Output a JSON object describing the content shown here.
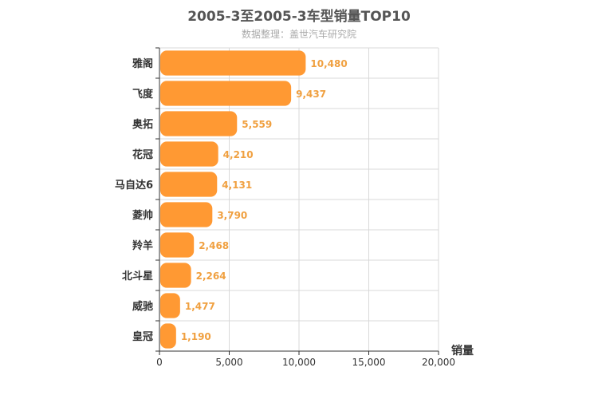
{
  "chart_data": {
    "type": "bar",
    "orientation": "horizontal",
    "title": "2005-3至2005-3车型销量TOP10",
    "subtitle": "数据整理：盖世汽车研究院",
    "categories": [
      "雅阁",
      "飞度",
      "奥拓",
      "花冠",
      "马自达6",
      "菱帅",
      "羚羊",
      "北斗星",
      "威驰",
      "皇冠"
    ],
    "values": [
      10480,
      9437,
      5559,
      4210,
      4131,
      3790,
      2468,
      2264,
      1477,
      1190
    ],
    "value_labels": [
      "10,480",
      "9,437",
      "5,559",
      "4,210",
      "4,131",
      "3,790",
      "2,468",
      "2,264",
      "1,477",
      "1,190"
    ],
    "xlabel": "销量",
    "xlim": [
      0,
      20000
    ],
    "xticks": [
      0,
      5000,
      10000,
      15000,
      20000
    ],
    "xtick_labels": [
      "0",
      "5,000",
      "10,000",
      "15,000",
      "20,000"
    ],
    "grid": true,
    "bar_color": "#ff9933",
    "label_color": "#f0a040"
  }
}
